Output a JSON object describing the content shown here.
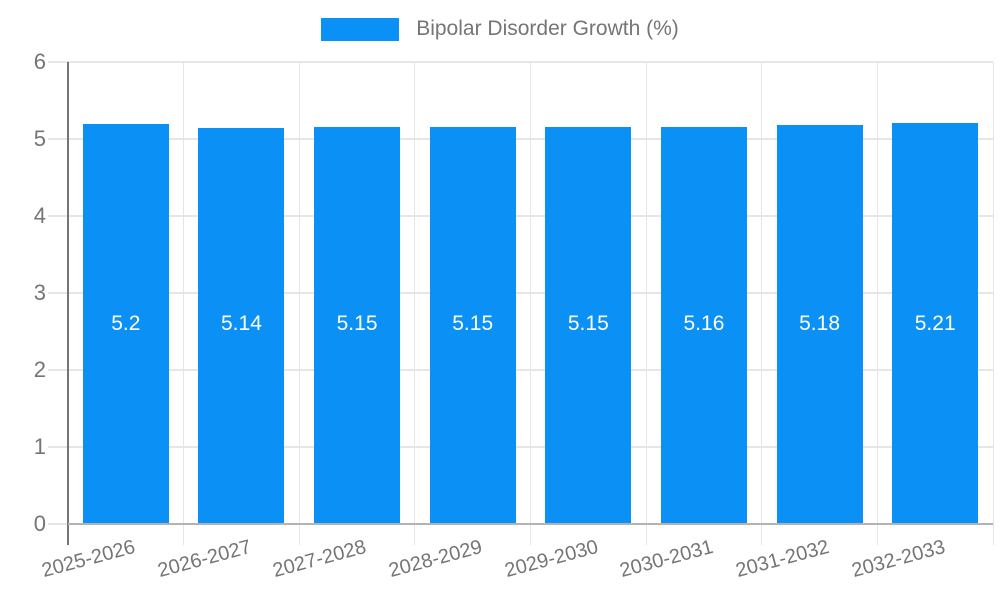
{
  "chart_data": {
    "type": "bar",
    "title": "Bipolar Disorder Growth (%)",
    "legend_position": "top",
    "categories": [
      "2025-2026",
      "2026-2027",
      "2027-2028",
      "2028-2029",
      "2029-2030",
      "2030-2031",
      "2031-2032",
      "2032-2033"
    ],
    "values": [
      5.2,
      5.14,
      5.15,
      5.15,
      5.15,
      5.16,
      5.18,
      5.21
    ],
    "bar_labels": [
      "5.2",
      "5.14",
      "5.15",
      "5.15",
      "5.15",
      "5.16",
      "5.18",
      "5.21"
    ],
    "xlabel": "",
    "ylabel": "",
    "ylim": [
      0,
      6
    ],
    "yticks": [
      0,
      1,
      2,
      3,
      4,
      5,
      6
    ],
    "grid": true,
    "colors": {
      "bar": "#0b90f5",
      "axis_text": "#757575",
      "gridline": "#e6e6e6",
      "baseline": "#b3b3b3",
      "axis_line": "#757575",
      "bar_label_text": "#ffffff"
    }
  }
}
